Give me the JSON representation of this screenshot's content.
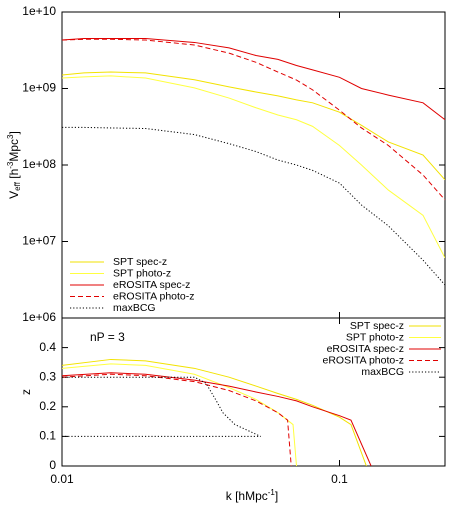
{
  "chart_data": [
    {
      "type": "line",
      "xlog": true,
      "ylog": true,
      "xlim": [
        0.01,
        0.24
      ],
      "ylim": [
        1000000,
        10000000000
      ],
      "xticks": [
        0.01,
        0.1
      ],
      "yticks": [
        {
          "value": 1000000,
          "label": "1e+06"
        },
        {
          "value": 10000000,
          "label": "1e+07"
        },
        {
          "value": 100000000,
          "label": "1e+08"
        },
        {
          "value": 1000000000,
          "label": "1e+09"
        },
        {
          "value": 10000000000,
          "label": "1e+10"
        }
      ],
      "ylabel": [
        "V",
        "eff",
        " [h",
        "-3",
        "Mpc",
        "3",
        "]"
      ],
      "legend": "lower left",
      "x": [
        0.01,
        0.012,
        0.015,
        0.02,
        0.03,
        0.04,
        0.05,
        0.06,
        0.07,
        0.08,
        0.1,
        0.12,
        0.15,
        0.2,
        0.24
      ],
      "series": [
        {
          "name": "SPT spec-z",
          "color": "#f2e200",
          "style": "solid",
          "values": [
            1500000000,
            1600000000,
            1640000000,
            1600000000,
            1300000000,
            1050000000,
            900000000,
            800000000,
            710000000,
            650000000,
            490000000,
            330000000,
            200000000,
            135000000,
            64000000
          ]
        },
        {
          "name": "SPT photo-z",
          "color": "#ffff40",
          "style": "solid",
          "values": [
            1370000000,
            1420000000,
            1460000000,
            1370000000,
            1020000000,
            750000000,
            560000000,
            450000000,
            390000000,
            320000000,
            180000000,
            100000000,
            47000000,
            22000000,
            6100000
          ]
        },
        {
          "name": "eROSITA spec-z",
          "color": "#e00000",
          "style": "solid",
          "values": [
            4300000000,
            4500000000,
            4500000000,
            4500000000,
            4000000000,
            3400000000,
            2700000000,
            2400000000,
            2000000000,
            1750000000,
            1400000000,
            1000000000,
            820000000,
            650000000,
            390000000
          ]
        },
        {
          "name": "eROSITA photo-z",
          "color": "#e00000",
          "style": "dashed",
          "values": [
            4300000000,
            4400000000,
            4400000000,
            4300000000,
            3700000000,
            2900000000,
            2200000000,
            1640000000,
            1290000000,
            960000000,
            520000000,
            305000000,
            180000000,
            74000000,
            35000000
          ]
        },
        {
          "name": "maxBCG",
          "color": "#000000",
          "style": "dotted",
          "values": [
            310000000,
            310000000,
            305000000,
            300000000,
            250000000,
            190000000,
            150000000,
            116000000,
            100000000,
            85000000,
            58000000,
            30000000,
            16000000,
            5700000,
            2700000
          ]
        }
      ]
    },
    {
      "type": "line",
      "xlog": true,
      "ylog": false,
      "xlim": [
        0.01,
        0.24
      ],
      "ylim": [
        0,
        0.5
      ],
      "xticks": [
        0.01,
        0.1
      ],
      "yticks": [
        0,
        0.1,
        0.2,
        0.3,
        0.4
      ],
      "xlabel": [
        "k [hMpc",
        "-1",
        "]"
      ],
      "ylabel": [
        "z"
      ],
      "annotation": "nP = 3",
      "legend": "upper right",
      "series": [
        {
          "name": "SPT spec-z",
          "color": "#f2e200",
          "style": "solid",
          "x": [
            0.01,
            0.015,
            0.02,
            0.03,
            0.04,
            0.05,
            0.06,
            0.07,
            0.08,
            0.1,
            0.11,
            0.125
          ],
          "values": [
            0.34,
            0.36,
            0.355,
            0.33,
            0.3,
            0.27,
            0.245,
            0.225,
            0.205,
            0.165,
            0.14,
            0
          ]
        },
        {
          "name": "SPT photo-z",
          "color": "#ffff40",
          "style": "solid",
          "x": [
            0.01,
            0.015,
            0.02,
            0.03,
            0.04,
            0.05,
            0.06,
            0.068,
            0.07
          ],
          "values": [
            0.33,
            0.345,
            0.34,
            0.31,
            0.265,
            0.225,
            0.18,
            0.14,
            0
          ]
        },
        {
          "name": "eROSITA spec-z",
          "color": "#e00000",
          "style": "solid",
          "x": [
            0.01,
            0.015,
            0.02,
            0.03,
            0.04,
            0.05,
            0.06,
            0.07,
            0.08,
            0.1,
            0.11,
            0.13
          ],
          "values": [
            0.305,
            0.315,
            0.31,
            0.29,
            0.27,
            0.25,
            0.235,
            0.22,
            0.2,
            0.17,
            0.155,
            0
          ]
        },
        {
          "name": "eROSITA photo-z",
          "color": "#e00000",
          "style": "dashed",
          "x": [
            0.01,
            0.015,
            0.02,
            0.03,
            0.04,
            0.05,
            0.06,
            0.065,
            0.067
          ],
          "values": [
            0.3,
            0.31,
            0.305,
            0.285,
            0.255,
            0.22,
            0.18,
            0.155,
            0
          ]
        },
        {
          "name": "maxBCG",
          "color": "#000000",
          "style": "dotted",
          "x": [
            0.01,
            0.02,
            0.03,
            0.033,
            0.036,
            0.038,
            0.042,
            0.052,
            0.01
          ],
          "values": [
            0.3,
            0.3,
            0.3,
            0.28,
            0.22,
            0.18,
            0.14,
            0.1,
            0.1
          ]
        }
      ]
    }
  ]
}
